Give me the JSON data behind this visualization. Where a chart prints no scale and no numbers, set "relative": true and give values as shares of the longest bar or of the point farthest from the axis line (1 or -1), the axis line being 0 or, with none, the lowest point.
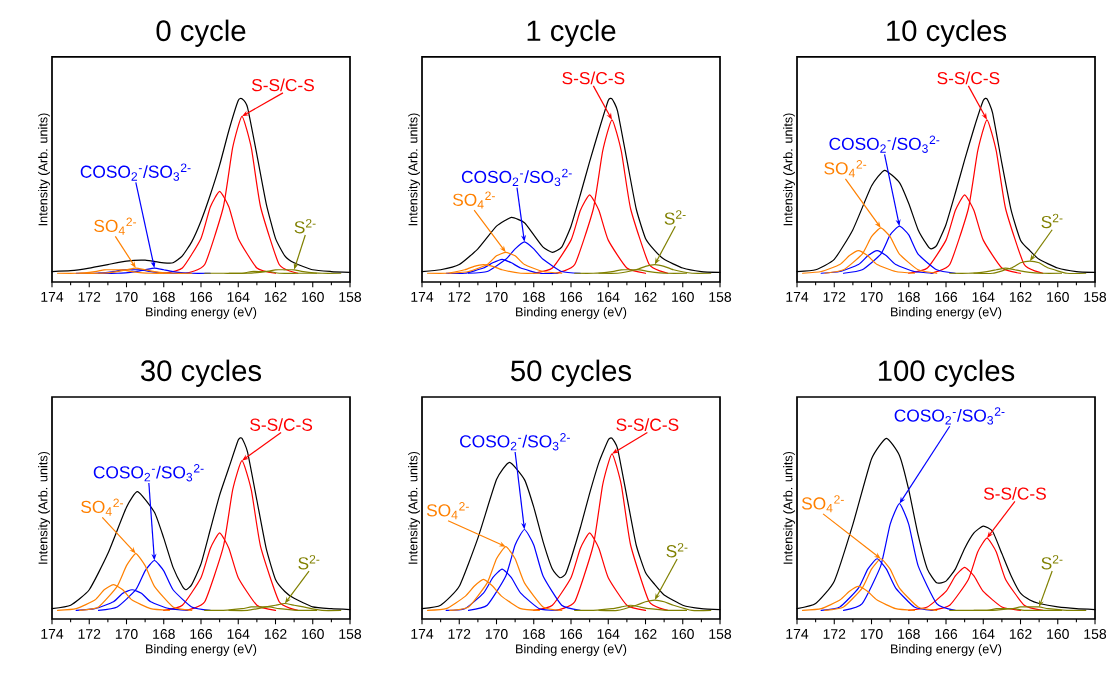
{
  "chart_data": [
    {
      "type": "line",
      "title": "0 cycle",
      "xlabel": "Binding energy (eV)",
      "ylabel": "Intensity (Arb. units)",
      "xlim": [
        174,
        158
      ],
      "xticks": [
        174,
        172,
        170,
        168,
        166,
        164,
        162,
        160,
        158
      ],
      "relative": true,
      "series": [
        {
          "name": "S-S/C-S",
          "color": "#ff0000",
          "x": [
            160.8,
            161.8,
            162.8,
            163.3,
            163.8,
            164.3,
            164.8,
            165.8,
            166.8
          ],
          "values": [
            0,
            0.05,
            0.38,
            0.72,
            0.9,
            0.72,
            0.38,
            0.05,
            0
          ]
        },
        {
          "color": "#ff0000",
          "x": [
            162,
            163,
            164,
            164.5,
            165,
            165.5,
            166,
            167,
            168
          ],
          "values": [
            0,
            0.03,
            0.2,
            0.38,
            0.47,
            0.38,
            0.2,
            0.03,
            0
          ]
        },
        {
          "name": "COSO$_{2}$$^{-}$/SO$_{3}$$^{2-}$",
          "color": "#0000ff",
          "x": [
            165.5,
            166.5,
            167.5,
            168,
            168.5,
            169,
            169.5,
            170.5,
            171.5
          ],
          "values": [
            0,
            0,
            0.01,
            0.02,
            0.03,
            0.02,
            0.01,
            0,
            0
          ]
        },
        {
          "color": "#0000ff",
          "x": [
            166.7,
            167.7,
            168.7,
            169.2,
            169.7,
            170.2,
            170.7,
            171.7,
            172.7
          ],
          "values": [
            0,
            0,
            0.01,
            0.02,
            0.02,
            0.02,
            0.01,
            0,
            0
          ]
        },
        {
          "name": "SO$_{4}$$^{2-}$",
          "color": "#ff8000",
          "x": [
            166.5,
            167.5,
            168.5,
            169,
            169.5,
            170,
            170.5,
            171.5,
            172.5
          ],
          "values": [
            0,
            0,
            0.01,
            0.02,
            0.03,
            0.02,
            0.01,
            0,
            0
          ]
        },
        {
          "color": "#ff8000",
          "x": [
            167.7,
            168.7,
            169.7,
            170.2,
            170.7,
            171.2,
            171.7,
            172.7,
            173.7
          ],
          "values": [
            0,
            0,
            0.01,
            0.02,
            0.02,
            0.02,
            0.01,
            0,
            0
          ]
        },
        {
          "name": "S$^{2-}$",
          "color": "#808000",
          "x": [
            158.5,
            159.5,
            160.5,
            161,
            161.5,
            162,
            162.5,
            163.5,
            164.5
          ],
          "values": [
            0,
            0,
            0.01,
            0.02,
            0.02,
            0.02,
            0.01,
            0,
            0
          ]
        },
        {
          "color": "#808000",
          "x": [
            159.8,
            160.8,
            161.8,
            162.3,
            162.8,
            163.3,
            163.8,
            164.8,
            165.8
          ],
          "values": [
            0,
            0,
            0,
            0.01,
            0.01,
            0.01,
            0,
            0,
            0
          ]
        },
        {
          "color": "#000000",
          "x": [
            174,
            173,
            172,
            171,
            170,
            169,
            168,
            167.5,
            167,
            166.5,
            166,
            165.5,
            165,
            164.5,
            164,
            163.8,
            163.5,
            163,
            162.5,
            162,
            161.5,
            161,
            160,
            159,
            158
          ],
          "values": [
            0.01,
            0.015,
            0.03,
            0.05,
            0.07,
            0.075,
            0.06,
            0.06,
            0.1,
            0.18,
            0.3,
            0.45,
            0.62,
            0.82,
            0.99,
            1.0,
            0.95,
            0.68,
            0.4,
            0.2,
            0.1,
            0.06,
            0.02,
            0.01,
            0.005
          ]
        }
      ]
    },
    {
      "type": "line",
      "title": "1 cycle",
      "xlabel": "Binding energy (eV)",
      "ylabel": "Intensity (Arb. units)",
      "xlim": [
        174,
        158
      ],
      "xticks": [
        174,
        172,
        170,
        168,
        166,
        164,
        162,
        160,
        158
      ],
      "relative": true,
      "series": [
        {
          "name": "S-S/C-S",
          "color": "#ff0000",
          "x": [
            160.8,
            161.8,
            162.8,
            163.3,
            163.8,
            164.3,
            164.8,
            165.8,
            166.8
          ],
          "values": [
            0,
            0.05,
            0.37,
            0.7,
            0.88,
            0.7,
            0.37,
            0.05,
            0
          ]
        },
        {
          "color": "#ff0000",
          "x": [
            162,
            163,
            164,
            164.5,
            165,
            165.5,
            166,
            167,
            168
          ],
          "values": [
            0,
            0.03,
            0.19,
            0.36,
            0.45,
            0.36,
            0.19,
            0.03,
            0
          ]
        },
        {
          "name": "COSO$_{2}$$^{-}$/SO$_{3}$$^{2-}$",
          "color": "#0000ff",
          "x": [
            165.5,
            166.5,
            167.5,
            168,
            168.5,
            169,
            169.5,
            170.5,
            171.5
          ],
          "values": [
            0,
            0.01,
            0.08,
            0.14,
            0.18,
            0.14,
            0.08,
            0.01,
            0
          ]
        },
        {
          "color": "#0000ff",
          "x": [
            166.7,
            167.7,
            168.7,
            169.2,
            169.7,
            170.2,
            170.7,
            171.7,
            172.7
          ],
          "values": [
            0,
            0,
            0.03,
            0.06,
            0.08,
            0.06,
            0.03,
            0,
            0
          ]
        },
        {
          "name": "SO$_{4}$$^{2-}$",
          "color": "#ff8000",
          "x": [
            166.5,
            167.5,
            168.5,
            169,
            169.5,
            170,
            170.5,
            171.5,
            172.5
          ],
          "values": [
            0,
            0.01,
            0.05,
            0.1,
            0.12,
            0.1,
            0.05,
            0.01,
            0
          ]
        },
        {
          "color": "#ff8000",
          "x": [
            167.7,
            168.7,
            169.7,
            170.2,
            170.7,
            171.2,
            171.7,
            172.7,
            173.7
          ],
          "values": [
            0,
            0,
            0.02,
            0.04,
            0.05,
            0.04,
            0.02,
            0,
            0
          ]
        },
        {
          "name": "S$^{2-}$",
          "color": "#808000",
          "x": [
            158.5,
            159.5,
            160.5,
            161,
            161.5,
            162,
            162.5,
            163.5,
            164.5
          ],
          "values": [
            0,
            0,
            0.02,
            0.04,
            0.05,
            0.04,
            0.02,
            0,
            0
          ]
        },
        {
          "color": "#808000",
          "x": [
            159.8,
            160.8,
            161.8,
            162.3,
            162.8,
            163.3,
            163.8,
            164.8,
            165.8
          ],
          "values": [
            0,
            0,
            0.01,
            0.02,
            0.02,
            0.02,
            0.01,
            0,
            0
          ]
        },
        {
          "color": "#000000",
          "x": [
            174,
            173,
            172,
            171,
            170,
            169.2,
            168.5,
            168,
            167.5,
            167,
            166.5,
            166,
            165.5,
            165,
            164.5,
            164,
            163.8,
            163.5,
            163,
            162.5,
            162,
            161.5,
            161,
            160,
            159,
            158
          ],
          "values": [
            0.01,
            0.02,
            0.05,
            0.14,
            0.27,
            0.32,
            0.29,
            0.22,
            0.15,
            0.12,
            0.15,
            0.27,
            0.45,
            0.64,
            0.82,
            0.99,
            1.0,
            0.93,
            0.65,
            0.37,
            0.2,
            0.13,
            0.08,
            0.03,
            0.01,
            0.005
          ]
        }
      ]
    },
    {
      "type": "line",
      "title": "10 cycles",
      "xlabel": "Binding energy (eV)",
      "ylabel": "Intensity (Arb. units)",
      "xlim": [
        174,
        158
      ],
      "xticks": [
        174,
        172,
        170,
        168,
        166,
        164,
        162,
        160,
        158
      ],
      "relative": true,
      "series": [
        {
          "name": "S-S/C-S",
          "color": "#ff0000",
          "x": [
            160.8,
            161.8,
            162.8,
            163.3,
            163.8,
            164.3,
            164.8,
            165.8,
            166.8
          ],
          "values": [
            0,
            0.05,
            0.37,
            0.7,
            0.88,
            0.7,
            0.37,
            0.05,
            0
          ]
        },
        {
          "color": "#ff0000",
          "x": [
            162,
            163,
            164,
            164.5,
            165,
            165.5,
            166,
            167,
            168
          ],
          "values": [
            0,
            0.03,
            0.19,
            0.36,
            0.45,
            0.36,
            0.19,
            0.03,
            0
          ]
        },
        {
          "name": "COSO$_{2}$$^{-}$/SO$_{3}$$^{2-}$",
          "color": "#0000ff",
          "x": [
            165.5,
            166.5,
            167.5,
            168,
            168.5,
            169,
            169.5,
            170.5,
            171.5
          ],
          "values": [
            0,
            0.02,
            0.11,
            0.22,
            0.27,
            0.22,
            0.11,
            0.02,
            0
          ]
        },
        {
          "color": "#0000ff",
          "x": [
            166.7,
            167.7,
            168.7,
            169.2,
            169.7,
            170.2,
            170.7,
            171.7,
            172.7
          ],
          "values": [
            0,
            0.01,
            0.05,
            0.1,
            0.13,
            0.1,
            0.05,
            0.01,
            0
          ]
        },
        {
          "name": "SO$_{4}$$^{2-}$",
          "color": "#ff8000",
          "x": [
            166.5,
            167.5,
            168.5,
            169,
            169.5,
            170,
            170.5,
            171.5,
            172.5
          ],
          "values": [
            0,
            0.02,
            0.11,
            0.21,
            0.26,
            0.21,
            0.11,
            0.02,
            0
          ]
        },
        {
          "color": "#ff8000",
          "x": [
            167.7,
            168.7,
            169.7,
            170.2,
            170.7,
            171.2,
            171.7,
            172.7,
            173.7
          ],
          "values": [
            0,
            0.01,
            0.05,
            0.1,
            0.13,
            0.1,
            0.05,
            0.01,
            0
          ]
        },
        {
          "name": "S$^{2-}$",
          "color": "#808000",
          "x": [
            158.5,
            159.5,
            160.5,
            161,
            161.5,
            162,
            162.5,
            163.5,
            164.5
          ],
          "values": [
            0,
            0,
            0.03,
            0.06,
            0.07,
            0.06,
            0.03,
            0,
            0
          ]
        },
        {
          "color": "#808000",
          "x": [
            159.8,
            160.8,
            161.8,
            162.3,
            162.8,
            163.3,
            163.8,
            164.8,
            165.8
          ],
          "values": [
            0,
            0,
            0.01,
            0.02,
            0.03,
            0.02,
            0.01,
            0,
            0
          ]
        },
        {
          "color": "#000000",
          "x": [
            174,
            173,
            172,
            171,
            170,
            169.3,
            168.5,
            168,
            167.5,
            167,
            166.8,
            166.5,
            166,
            165.5,
            165,
            164.5,
            164,
            163.8,
            163.5,
            163,
            162.5,
            162,
            161.5,
            161,
            160,
            159,
            158
          ],
          "values": [
            0.01,
            0.02,
            0.08,
            0.25,
            0.5,
            0.59,
            0.52,
            0.4,
            0.25,
            0.16,
            0.14,
            0.16,
            0.28,
            0.46,
            0.65,
            0.83,
            0.99,
            1.0,
            0.92,
            0.63,
            0.36,
            0.19,
            0.13,
            0.08,
            0.03,
            0.01,
            0.005
          ]
        }
      ]
    },
    {
      "type": "line",
      "title": "30 cycles",
      "xlabel": "Binding energy (eV)",
      "ylabel": "Intensity (Arb. units)",
      "xlim": [
        174,
        158
      ],
      "xticks": [
        174,
        172,
        170,
        168,
        166,
        164,
        162,
        160,
        158
      ],
      "relative": true,
      "series": [
        {
          "name": "S-S/C-S",
          "color": "#ff0000",
          "x": [
            160.8,
            161.8,
            162.8,
            163.3,
            163.8,
            164.3,
            164.8,
            165.8,
            166.8
          ],
          "values": [
            0,
            0.05,
            0.37,
            0.7,
            0.87,
            0.7,
            0.37,
            0.05,
            0
          ]
        },
        {
          "color": "#ff0000",
          "x": [
            162,
            163,
            164,
            164.5,
            165,
            165.5,
            166,
            167,
            168
          ],
          "values": [
            0,
            0.03,
            0.19,
            0.36,
            0.45,
            0.36,
            0.19,
            0.03,
            0
          ]
        },
        {
          "name": "COSO$_{2}$$^{-}$/SO$_{3}$$^{2-}$",
          "color": "#0000ff",
          "x": [
            165.5,
            166.5,
            167.5,
            168,
            168.5,
            169,
            169.5,
            170.5,
            171.5
          ],
          "values": [
            0,
            0.02,
            0.12,
            0.23,
            0.29,
            0.23,
            0.12,
            0.02,
            0
          ]
        },
        {
          "color": "#0000ff",
          "x": [
            166.7,
            167.7,
            168.7,
            169.2,
            169.7,
            170.2,
            170.7,
            171.7,
            172.7
          ],
          "values": [
            0,
            0.01,
            0.05,
            0.1,
            0.12,
            0.1,
            0.05,
            0.01,
            0
          ]
        },
        {
          "name": "SO$_{4}$$^{2-}$",
          "color": "#ff8000",
          "x": [
            166.5,
            167.5,
            168.5,
            169,
            169.5,
            170,
            170.5,
            171.5,
            172.5
          ],
          "values": [
            0,
            0.02,
            0.14,
            0.26,
            0.33,
            0.26,
            0.14,
            0.02,
            0
          ]
        },
        {
          "color": "#ff8000",
          "x": [
            167.7,
            168.7,
            169.7,
            170.2,
            170.7,
            171.2,
            171.7,
            172.7,
            173.7
          ],
          "values": [
            0,
            0.01,
            0.06,
            0.12,
            0.15,
            0.12,
            0.06,
            0.01,
            0
          ]
        },
        {
          "name": "S$^{2-}$",
          "color": "#808000",
          "x": [
            158.5,
            159.5,
            160.5,
            161,
            161.5,
            162,
            162.5,
            163.5,
            164.5
          ],
          "values": [
            0,
            0,
            0.02,
            0.03,
            0.04,
            0.03,
            0.02,
            0,
            0
          ]
        },
        {
          "color": "#808000",
          "x": [
            159.8,
            160.8,
            161.8,
            162.3,
            162.8,
            163.3,
            163.8,
            164.8,
            165.8
          ],
          "values": [
            0,
            0,
            0.01,
            0.02,
            0.02,
            0.02,
            0.01,
            0,
            0
          ]
        },
        {
          "color": "#000000",
          "x": [
            174,
            173,
            172,
            171,
            170,
            169.4,
            168.5,
            168,
            167.5,
            167,
            166.8,
            166.5,
            166,
            165.5,
            165,
            164.5,
            164,
            163.8,
            163.5,
            163,
            162.5,
            162,
            161.5,
            161,
            160,
            159,
            158
          ],
          "values": [
            0.01,
            0.03,
            0.12,
            0.33,
            0.6,
            0.69,
            0.57,
            0.42,
            0.25,
            0.14,
            0.12,
            0.15,
            0.27,
            0.47,
            0.67,
            0.83,
            0.99,
            1.0,
            0.92,
            0.64,
            0.36,
            0.18,
            0.11,
            0.07,
            0.02,
            0.01,
            0.005
          ]
        }
      ]
    },
    {
      "type": "line",
      "title": "50 cycles",
      "xlabel": "Binding energy (eV)",
      "ylabel": "Intensity (Arb. units)",
      "xlim": [
        174,
        158
      ],
      "xticks": [
        174,
        172,
        170,
        168,
        166,
        164,
        162,
        160,
        158
      ],
      "relative": true,
      "series": [
        {
          "name": "S-S/C-S",
          "color": "#ff0000",
          "x": [
            160.8,
            161.8,
            162.8,
            163.3,
            163.8,
            164.3,
            164.8,
            165.8,
            166.8
          ],
          "values": [
            0,
            0.05,
            0.38,
            0.73,
            0.91,
            0.73,
            0.38,
            0.05,
            0
          ]
        },
        {
          "color": "#ff0000",
          "x": [
            162,
            163,
            164,
            164.5,
            165,
            165.5,
            166,
            167,
            168
          ],
          "values": [
            0,
            0.03,
            0.19,
            0.36,
            0.45,
            0.36,
            0.19,
            0.03,
            0
          ]
        },
        {
          "name": "COSO$_{2}$$^{-}$/SO$_{3}$$^{2-}$",
          "color": "#0000ff",
          "x": [
            165.5,
            166.5,
            167.5,
            168,
            168.5,
            169,
            169.5,
            170.5,
            171.5
          ],
          "values": [
            0,
            0.03,
            0.2,
            0.38,
            0.47,
            0.38,
            0.2,
            0.03,
            0
          ]
        },
        {
          "color": "#0000ff",
          "x": [
            166.7,
            167.7,
            168.7,
            169.2,
            169.7,
            170.2,
            170.7,
            171.7,
            172.7
          ],
          "values": [
            0,
            0.01,
            0.1,
            0.19,
            0.24,
            0.19,
            0.1,
            0.01,
            0
          ]
        },
        {
          "name": "SO$_{4}$$^{2-}$",
          "color": "#ff8000",
          "x": [
            166.5,
            167.5,
            168.5,
            169,
            169.5,
            170,
            170.5,
            171.5,
            172.5
          ],
          "values": [
            0,
            0.02,
            0.16,
            0.3,
            0.37,
            0.3,
            0.16,
            0.02,
            0
          ]
        },
        {
          "color": "#ff8000",
          "x": [
            167.7,
            168.7,
            169.7,
            170.2,
            170.7,
            171.2,
            171.7,
            172.7,
            173.7
          ],
          "values": [
            0,
            0.01,
            0.08,
            0.14,
            0.18,
            0.14,
            0.08,
            0.01,
            0
          ]
        },
        {
          "name": "S$^{2-}$",
          "color": "#808000",
          "x": [
            158.5,
            159.5,
            160.5,
            161,
            161.5,
            162,
            162.5,
            163.5,
            164.5
          ],
          "values": [
            0,
            0,
            0.03,
            0.05,
            0.06,
            0.05,
            0.03,
            0,
            0
          ]
        },
        {
          "color": "#808000",
          "x": [
            159.8,
            160.8,
            161.8,
            162.3,
            162.8,
            163.3,
            163.8,
            164.8,
            165.8
          ],
          "values": [
            0,
            0,
            0.01,
            0.02,
            0.03,
            0.02,
            0.01,
            0,
            0
          ]
        },
        {
          "color": "#000000",
          "x": [
            174,
            173,
            172,
            171,
            170,
            169.3,
            168.5,
            168,
            167.5,
            167,
            166.6,
            166.3,
            166,
            165.5,
            165,
            164.5,
            164,
            163.8,
            163.5,
            163,
            162.5,
            162,
            161.5,
            161,
            160,
            159,
            158
          ],
          "values": [
            0.01,
            0.03,
            0.14,
            0.42,
            0.76,
            0.86,
            0.76,
            0.6,
            0.4,
            0.24,
            0.19,
            0.21,
            0.3,
            0.48,
            0.68,
            0.86,
            0.99,
            1.0,
            0.94,
            0.66,
            0.38,
            0.22,
            0.15,
            0.09,
            0.03,
            0.01,
            0.005
          ]
        }
      ]
    },
    {
      "type": "line",
      "title": "100 cycles",
      "xlabel": "Binding energy (eV)",
      "ylabel": "Intensity (Arb. units)",
      "xlim": [
        174,
        158
      ],
      "xticks": [
        174,
        172,
        170,
        168,
        166,
        164,
        162,
        160,
        158
      ],
      "relative": true,
      "series": [
        {
          "name": "S-S/C-S",
          "color": "#ff0000",
          "x": [
            160.8,
            161.8,
            162.8,
            163.3,
            163.8,
            164.3,
            164.8,
            165.8,
            166.8
          ],
          "values": [
            0,
            0.03,
            0.18,
            0.34,
            0.42,
            0.34,
            0.18,
            0.03,
            0
          ]
        },
        {
          "color": "#ff0000",
          "x": [
            162,
            163,
            164,
            164.5,
            165,
            165.5,
            166,
            167,
            168
          ],
          "values": [
            0,
            0.02,
            0.11,
            0.2,
            0.25,
            0.2,
            0.11,
            0.02,
            0
          ]
        },
        {
          "name": "COSO$_{2}$$^{-}$/SO$_{3}$$^{2-}$",
          "color": "#0000ff",
          "x": [
            165.5,
            166.5,
            167.5,
            168,
            168.5,
            169,
            169.5,
            170.5,
            171.5
          ],
          "values": [
            0,
            0.04,
            0.26,
            0.5,
            0.62,
            0.5,
            0.26,
            0.04,
            0
          ]
        },
        {
          "color": "#0000ff",
          "x": [
            166.7,
            167.7,
            168.7,
            169.2,
            169.7,
            170.2,
            170.7,
            171.7,
            172.7
          ],
          "values": [
            0,
            0.02,
            0.13,
            0.24,
            0.3,
            0.24,
            0.13,
            0.02,
            0
          ]
        },
        {
          "name": "SO$_{4}$$^{2-}$",
          "color": "#ff8000",
          "x": [
            166.5,
            167.5,
            168.5,
            169,
            169.5,
            170,
            170.5,
            171.5,
            172.5
          ],
          "values": [
            0,
            0.02,
            0.13,
            0.24,
            0.3,
            0.24,
            0.13,
            0.02,
            0
          ]
        },
        {
          "color": "#ff8000",
          "x": [
            167.7,
            168.7,
            169.7,
            170.2,
            170.7,
            171.2,
            171.7,
            172.7,
            173.7
          ],
          "values": [
            0,
            0.01,
            0.06,
            0.11,
            0.14,
            0.11,
            0.06,
            0.01,
            0
          ]
        },
        {
          "name": "S$^{2-}$",
          "color": "#808000",
          "x": [
            158.5,
            159.5,
            160.5,
            161,
            161.5,
            162,
            162.5,
            163.5,
            164.5
          ],
          "values": [
            0,
            0,
            0.01,
            0.02,
            0.02,
            0.02,
            0.01,
            0,
            0
          ]
        },
        {
          "color": "#808000",
          "x": [
            159.8,
            160.8,
            161.8,
            162.3,
            162.8,
            163.3,
            163.8,
            164.8,
            165.8
          ],
          "values": [
            0,
            0,
            0,
            0.01,
            0.01,
            0.01,
            0,
            0,
            0
          ]
        },
        {
          "color": "#000000",
          "x": [
            174,
            173,
            172,
            171,
            170,
            169.2,
            168.5,
            168,
            167.5,
            167,
            166.5,
            166,
            165.5,
            165,
            164.5,
            164,
            163.5,
            163,
            162.5,
            162,
            161.5,
            161,
            160,
            159,
            158
          ],
          "values": [
            0.01,
            0.04,
            0.17,
            0.5,
            0.88,
            1.0,
            0.9,
            0.7,
            0.44,
            0.24,
            0.16,
            0.17,
            0.24,
            0.36,
            0.45,
            0.49,
            0.46,
            0.33,
            0.2,
            0.1,
            0.06,
            0.04,
            0.02,
            0.01,
            0.005
          ]
        }
      ]
    }
  ]
}
